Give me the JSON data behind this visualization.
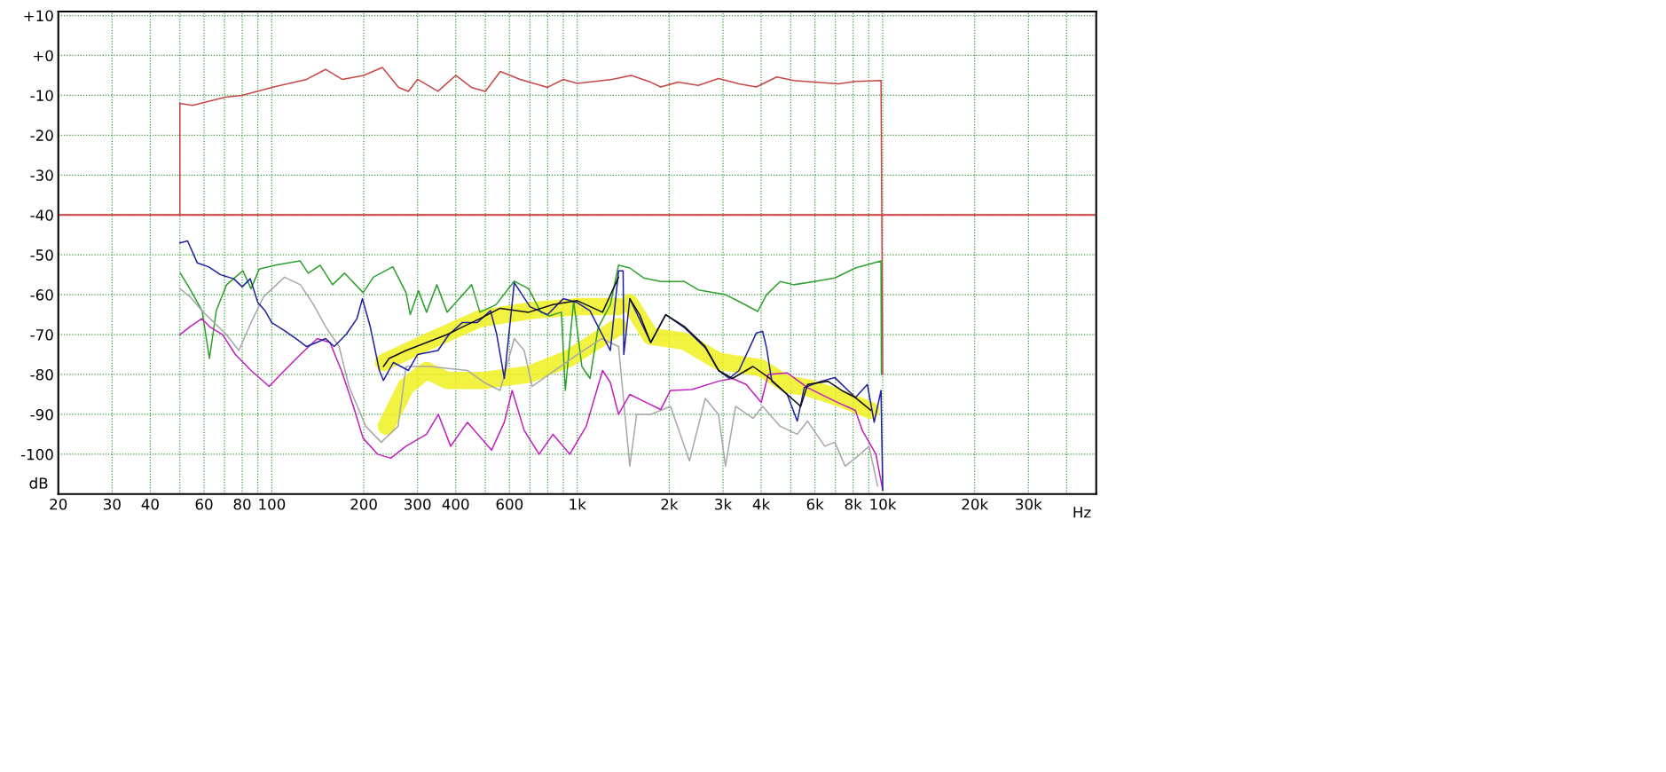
{
  "chart_data": {
    "type": "line",
    "xlabel": "Hz",
    "ylabel": "dB",
    "log": "x",
    "grid": true,
    "marker": "none",
    "line_style": "solid",
    "xlim": [
      20,
      50000
    ],
    "ylim": [
      -110,
      11
    ],
    "xticks": [
      20,
      30,
      40,
      {
        "value": 50,
        "label": null
      },
      60,
      {
        "value": 70,
        "label": null
      },
      80,
      {
        "value": 90,
        "label": null
      },
      100,
      200,
      300,
      400,
      {
        "value": 500,
        "label": null
      },
      600,
      {
        "value": 700,
        "label": null
      },
      {
        "value": 800,
        "label": null
      },
      {
        "value": 900,
        "label": null
      },
      {
        "value": 1000,
        "label": "1k"
      },
      {
        "value": 2000,
        "label": "2k"
      },
      {
        "value": 3000,
        "label": "3k"
      },
      {
        "value": 4000,
        "label": "4k"
      },
      {
        "value": 5000,
        "label": null
      },
      {
        "value": 6000,
        "label": "6k"
      },
      {
        "value": 7000,
        "label": null
      },
      {
        "value": 8000,
        "label": "8k"
      },
      {
        "value": 9000,
        "label": null
      },
      {
        "value": 10000,
        "label": "10k"
      },
      {
        "value": 20000,
        "label": "20k"
      },
      {
        "value": 30000,
        "label": "30k"
      },
      {
        "value": 40000,
        "label": null
      }
    ],
    "yticks": [
      {
        "value": 10,
        "label": "+10"
      },
      {
        "value": 0,
        "label": "+0"
      },
      {
        "value": -10,
        "label": "-10"
      },
      {
        "value": -20,
        "label": "-20"
      },
      {
        "value": -30,
        "label": "-30"
      },
      {
        "value": -40,
        "label": "-40"
      },
      {
        "value": -50,
        "label": "-50"
      },
      {
        "value": -60,
        "label": "-60"
      },
      {
        "value": -70,
        "label": "-70"
      },
      {
        "value": -80,
        "label": "-80"
      },
      {
        "value": -90,
        "label": "-90"
      },
      {
        "value": -100,
        "label": "-100"
      }
    ],
    "ref_lines": [
      {
        "axis": "y",
        "value": -40,
        "color": "#d04040",
        "line_style": "solid"
      }
    ],
    "series": [
      {
        "color": "#f0f020",
        "x": [
          232,
          320,
          480,
          700,
          1000,
          1365
        ],
        "values": [
          -77,
          -72,
          -66,
          -64,
          -63,
          -63
        ]
      },
      {
        "color": "#f0f020",
        "x": [
          237,
          275,
          321,
          375,
          495,
          693,
          938,
          1365
        ],
        "values": [
          -93,
          -83,
          -79,
          -81.5,
          -81.5,
          -80,
          -76,
          -68
        ]
      },
      {
        "color": "#f0f020",
        "x": [
          1486,
          1739,
          2245,
          2900,
          3980,
          4866,
          5675,
          7153,
          9142
        ],
        "values": [
          -62,
          -70.4,
          -71.7,
          -76.7,
          -78.3,
          -82.5,
          -83.3,
          -85.8,
          -89
        ]
      },
      {
        "color": "#c84848",
        "x": [
          50,
          50,
          55,
          70,
          80,
          100,
          130,
          150,
          170,
          200,
          230,
          260,
          280,
          300,
          350,
          400,
          450,
          500,
          560,
          650,
          800,
          900,
          1000,
          1300,
          1502,
          1739,
          1875,
          2135,
          2490,
          2900,
          3385,
          3857,
          4497,
          5118,
          5974,
          7153,
          8138,
          9872,
          10000
        ],
        "values": [
          -40,
          -12,
          -12.5,
          -10.5,
          -10,
          -8,
          -6,
          -3.5,
          -6,
          -5,
          -3,
          -8,
          -9,
          -6,
          -9,
          -5,
          -8,
          -9,
          -4,
          -6,
          -8,
          -6,
          -7,
          -6,
          -5,
          -6.7,
          -7.9,
          -6.7,
          -7.5,
          -5.8,
          -7.1,
          -7.9,
          -5.4,
          -6.3,
          -6.7,
          -7.1,
          -6.5,
          -6.3,
          -80
        ]
      },
      {
        "color": "#30a030",
        "x": [
          50.2,
          53.9,
          59.1,
          62.5,
          65.8,
          71.1,
          80.4,
          85.5,
          90.9,
          102.9,
          123.7,
          131.6,
          144,
          158,
          173,
          199,
          215,
          249,
          275,
          284,
          302,
          321,
          347,
          375,
          451,
          480,
          542,
          622,
          693,
          760,
          809,
          887,
          914,
          973,
          1035,
          1101,
          1170,
          1283,
          1365,
          1486,
          1649,
          1875,
          2245,
          2490,
          3056,
          3385,
          3899,
          4165,
          4617,
          5118,
          5974,
          6973,
          8138,
          9872,
          9900
        ],
        "values": [
          -54.6,
          -58.5,
          -64,
          -76,
          -64,
          -57.5,
          -54,
          -58.5,
          -53.6,
          -52.6,
          -51.5,
          -54.6,
          -52.6,
          -57.5,
          -54.6,
          -59.5,
          -55.6,
          -53,
          -59.5,
          -65,
          -59,
          -64.4,
          -57.5,
          -64.4,
          -57.5,
          -64.4,
          -62.5,
          -56.6,
          -58.5,
          -64.4,
          -65.3,
          -64.4,
          -84,
          -61.5,
          -78,
          -81,
          -68.3,
          -62.5,
          -52.6,
          -53.3,
          -55.8,
          -56.7,
          -56.7,
          -58.8,
          -60,
          -61.7,
          -64.2,
          -60,
          -56.7,
          -57.5,
          -56.7,
          -55.8,
          -53.3,
          -51.5,
          -80
        ]
      },
      {
        "color": "#a8a8a8",
        "x": [
          50,
          54,
          59,
          71,
          78,
          85.5,
          94,
          110,
          124,
          137,
          150,
          166,
          179,
          203,
          228,
          259,
          275,
          330,
          437,
          495,
          559,
          622,
          670,
          712,
          809,
          1000,
          1200,
          1365,
          1486,
          1565,
          1739,
          2020,
          2330,
          2625,
          2900,
          3056,
          3300,
          3760,
          4045,
          4617,
          5251,
          5675,
          6459,
          6973,
          7530,
          8138,
          9021,
          9620
        ],
        "values": [
          -58.5,
          -60.5,
          -64,
          -70,
          -74,
          -67,
          -60.5,
          -55.6,
          -57.5,
          -62.5,
          -68,
          -73,
          -83,
          -93,
          -97,
          -93,
          -78,
          -78,
          -79,
          -82,
          -84,
          -71,
          -74,
          -83,
          -80,
          -75,
          -71,
          -73,
          -103,
          -90,
          -90,
          -88,
          -101.7,
          -86,
          -90,
          -103,
          -88,
          -91,
          -88,
          -93,
          -95,
          -91.7,
          -98,
          -97,
          -103,
          -101,
          -98,
          -108
        ]
      },
      {
        "color": "#c020c0",
        "x": [
          50,
          54,
          59,
          62.5,
          69,
          76,
          85.5,
          98,
          110,
          124,
          141,
          155,
          169,
          185,
          199,
          222,
          245,
          275,
          321,
          351,
          385,
          437,
          524,
          577,
          612,
          670,
          750,
          833,
          945,
          1070,
          1210,
          1283,
          1365,
          1486,
          1649,
          1875,
          2020,
          2370,
          2900,
          3220,
          3573,
          4000,
          4220,
          4866,
          5675,
          6973,
          8138,
          8569,
          9500,
          10000
        ],
        "values": [
          -70,
          -68,
          -66,
          -68,
          -70,
          -75,
          -79,
          -83,
          -79,
          -75,
          -71,
          -72,
          -79,
          -88,
          -96,
          -100,
          -101,
          -98,
          -95,
          -90,
          -98,
          -92,
          -99,
          -92,
          -84,
          -94,
          -100,
          -95,
          -100,
          -93,
          -79,
          -82,
          -90,
          -85,
          -86.7,
          -88.8,
          -84,
          -83.8,
          -81.7,
          -81,
          -82.5,
          -87,
          -80,
          -79.6,
          -83.3,
          -86.7,
          -89,
          -94,
          -100,
          -109
        ]
      },
      {
        "color": "#2020a0",
        "x": [
          50,
          53,
          57,
          62,
          68,
          75,
          80,
          85,
          90,
          95,
          100,
          110,
          120,
          130,
          140,
          150,
          160,
          175,
          190,
          198,
          210,
          225,
          232,
          250,
          280,
          300,
          350,
          380,
          420,
          470,
          520,
          545,
          577,
          622,
          700,
          800,
          900,
          1000,
          1100,
          1283,
          1365,
          1413,
          1420,
          1486,
          1739,
          1948,
          2245,
          2625,
          2900,
          3143,
          3385,
          3665,
          3857,
          4045,
          4165,
          4334,
          4866,
          5251,
          5534,
          6288,
          6973,
          8138,
          8905,
          9376,
          9872,
          10000
        ],
        "values": [
          -47,
          -46.5,
          -52,
          -53,
          -55,
          -56,
          -58,
          -56,
          -62,
          -64,
          -67,
          -69,
          -71,
          -73,
          -72,
          -71,
          -73,
          -70,
          -66,
          -61,
          -68,
          -79,
          -81.5,
          -77,
          -79,
          -75,
          -74,
          -70,
          -67,
          -67,
          -64,
          -70,
          -81,
          -57,
          -63,
          -65,
          -61,
          -62,
          -64,
          -74,
          -54,
          -54,
          -75,
          -61,
          -72,
          -65,
          -68.3,
          -73.3,
          -79,
          -81,
          -79,
          -73.3,
          -69.6,
          -69.2,
          -73.3,
          -81.7,
          -85,
          -91.7,
          -83.3,
          -81.7,
          -80.8,
          -85.8,
          -82.5,
          -92,
          -84,
          -109
        ]
      },
      {
        "color": "#101010",
        "x": [
          232,
          242,
          275,
          321,
          375,
          423,
          480,
          559,
          693,
          833,
          1000,
          1210,
          1365
        ],
        "values": [
          -78,
          -76,
          -74,
          -72,
          -70,
          -68,
          -66,
          -63.4,
          -64.4,
          -62.5,
          -61.5,
          -64.4,
          -55.6
        ]
      },
      {
        "color": "#101010",
        "x": [
          1486,
          1600,
          1739,
          1948,
          2245,
          2625,
          2900,
          3220,
          3760,
          4270,
          4866,
          5388,
          5675,
          6612,
          7339,
          8138,
          9142
        ],
        "values": [
          -61,
          -65,
          -72,
          -65,
          -68,
          -73,
          -79,
          -81,
          -78,
          -81,
          -85,
          -88,
          -82.5,
          -81.7,
          -84,
          -85.8,
          -89
        ]
      }
    ]
  }
}
